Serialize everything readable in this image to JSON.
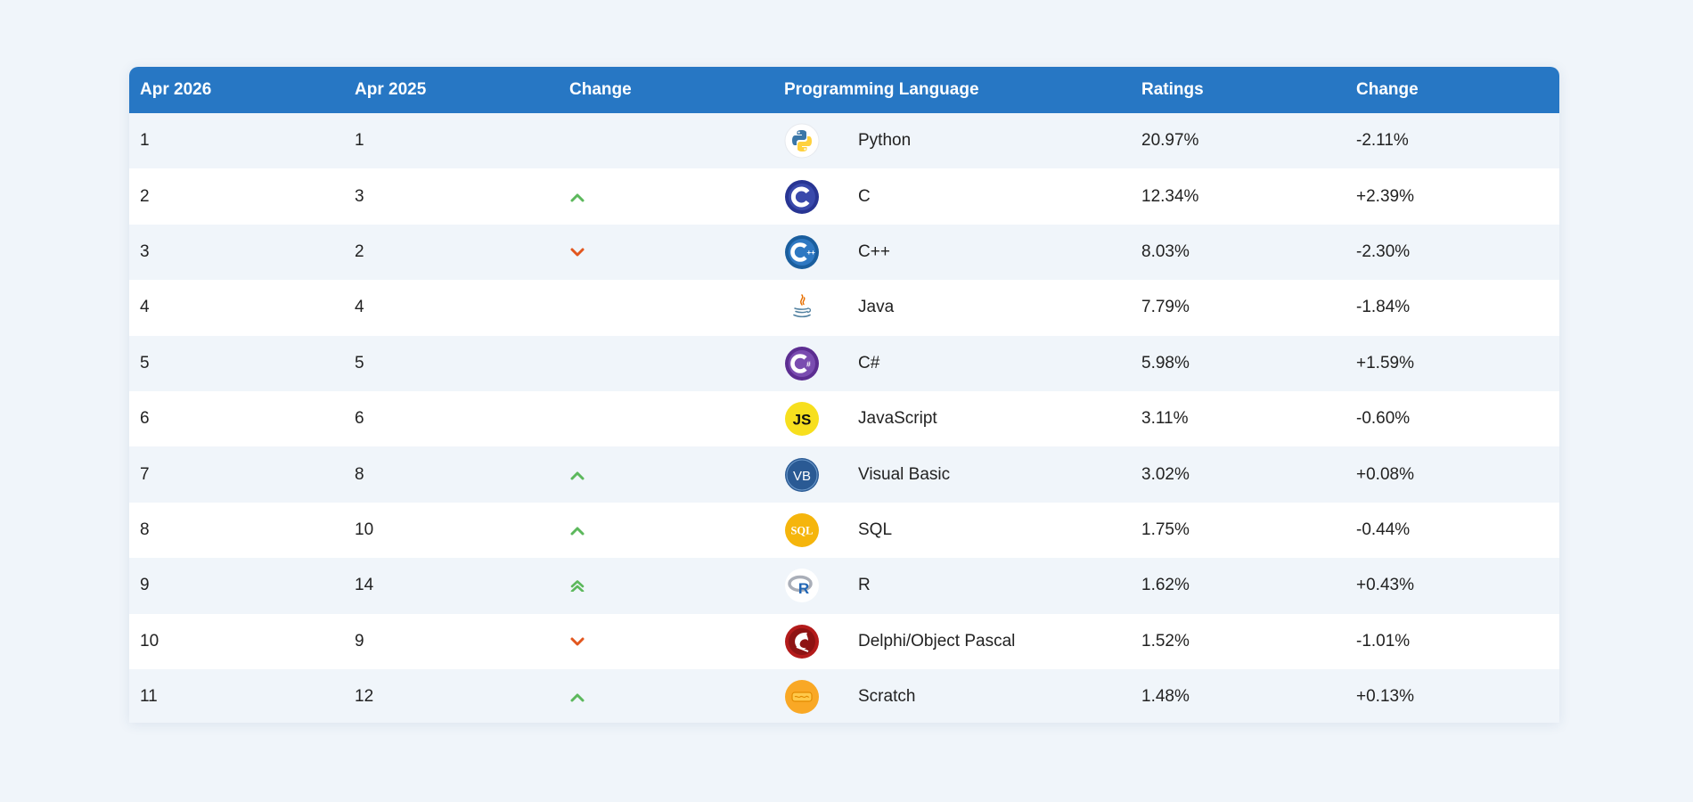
{
  "headers": {
    "this_year": "Apr 2026",
    "last_year": "Apr 2025",
    "change": "Change",
    "language": "Programming Language",
    "ratings": "Ratings",
    "rating_change": "Change"
  },
  "colors": {
    "header_bg": "#2777c4",
    "up": "#5cb85c",
    "down": "#e2561e",
    "row_alt": "#f0f5fa"
  },
  "rows": [
    {
      "rank": "1",
      "prev": "1",
      "trend": "none",
      "language": "Python",
      "logo": "python-icon",
      "rating": "20.97%",
      "delta": "-2.11%"
    },
    {
      "rank": "2",
      "prev": "3",
      "trend": "up",
      "language": "C",
      "logo": "c-icon",
      "rating": "12.34%",
      "delta": "+2.39%"
    },
    {
      "rank": "3",
      "prev": "2",
      "trend": "down",
      "language": "C++",
      "logo": "cpp-icon",
      "rating": "8.03%",
      "delta": "-2.30%"
    },
    {
      "rank": "4",
      "prev": "4",
      "trend": "none",
      "language": "Java",
      "logo": "java-icon",
      "rating": "7.79%",
      "delta": "-1.84%"
    },
    {
      "rank": "5",
      "prev": "5",
      "trend": "none",
      "language": "C#",
      "logo": "csharp-icon",
      "rating": "5.98%",
      "delta": "+1.59%"
    },
    {
      "rank": "6",
      "prev": "6",
      "trend": "none",
      "language": "JavaScript",
      "logo": "javascript-icon",
      "rating": "3.11%",
      "delta": "-0.60%"
    },
    {
      "rank": "7",
      "prev": "8",
      "trend": "up",
      "language": "Visual Basic",
      "logo": "visual-basic-icon",
      "rating": "3.02%",
      "delta": "+0.08%"
    },
    {
      "rank": "8",
      "prev": "10",
      "trend": "up",
      "language": "SQL",
      "logo": "sql-icon",
      "rating": "1.75%",
      "delta": "-0.44%"
    },
    {
      "rank": "9",
      "prev": "14",
      "trend": "up2",
      "language": "R",
      "logo": "r-icon",
      "rating": "1.62%",
      "delta": "+0.43%"
    },
    {
      "rank": "10",
      "prev": "9",
      "trend": "down",
      "language": "Delphi/Object Pascal",
      "logo": "delphi-icon",
      "rating": "1.52%",
      "delta": "-1.01%"
    },
    {
      "rank": "11",
      "prev": "12",
      "trend": "up",
      "language": "Scratch",
      "logo": "scratch-icon",
      "rating": "1.48%",
      "delta": "+0.13%"
    }
  ],
  "logo_text": {
    "javascript": "JS",
    "visual_basic": "VB",
    "sql": "SQL",
    "r": "R"
  }
}
